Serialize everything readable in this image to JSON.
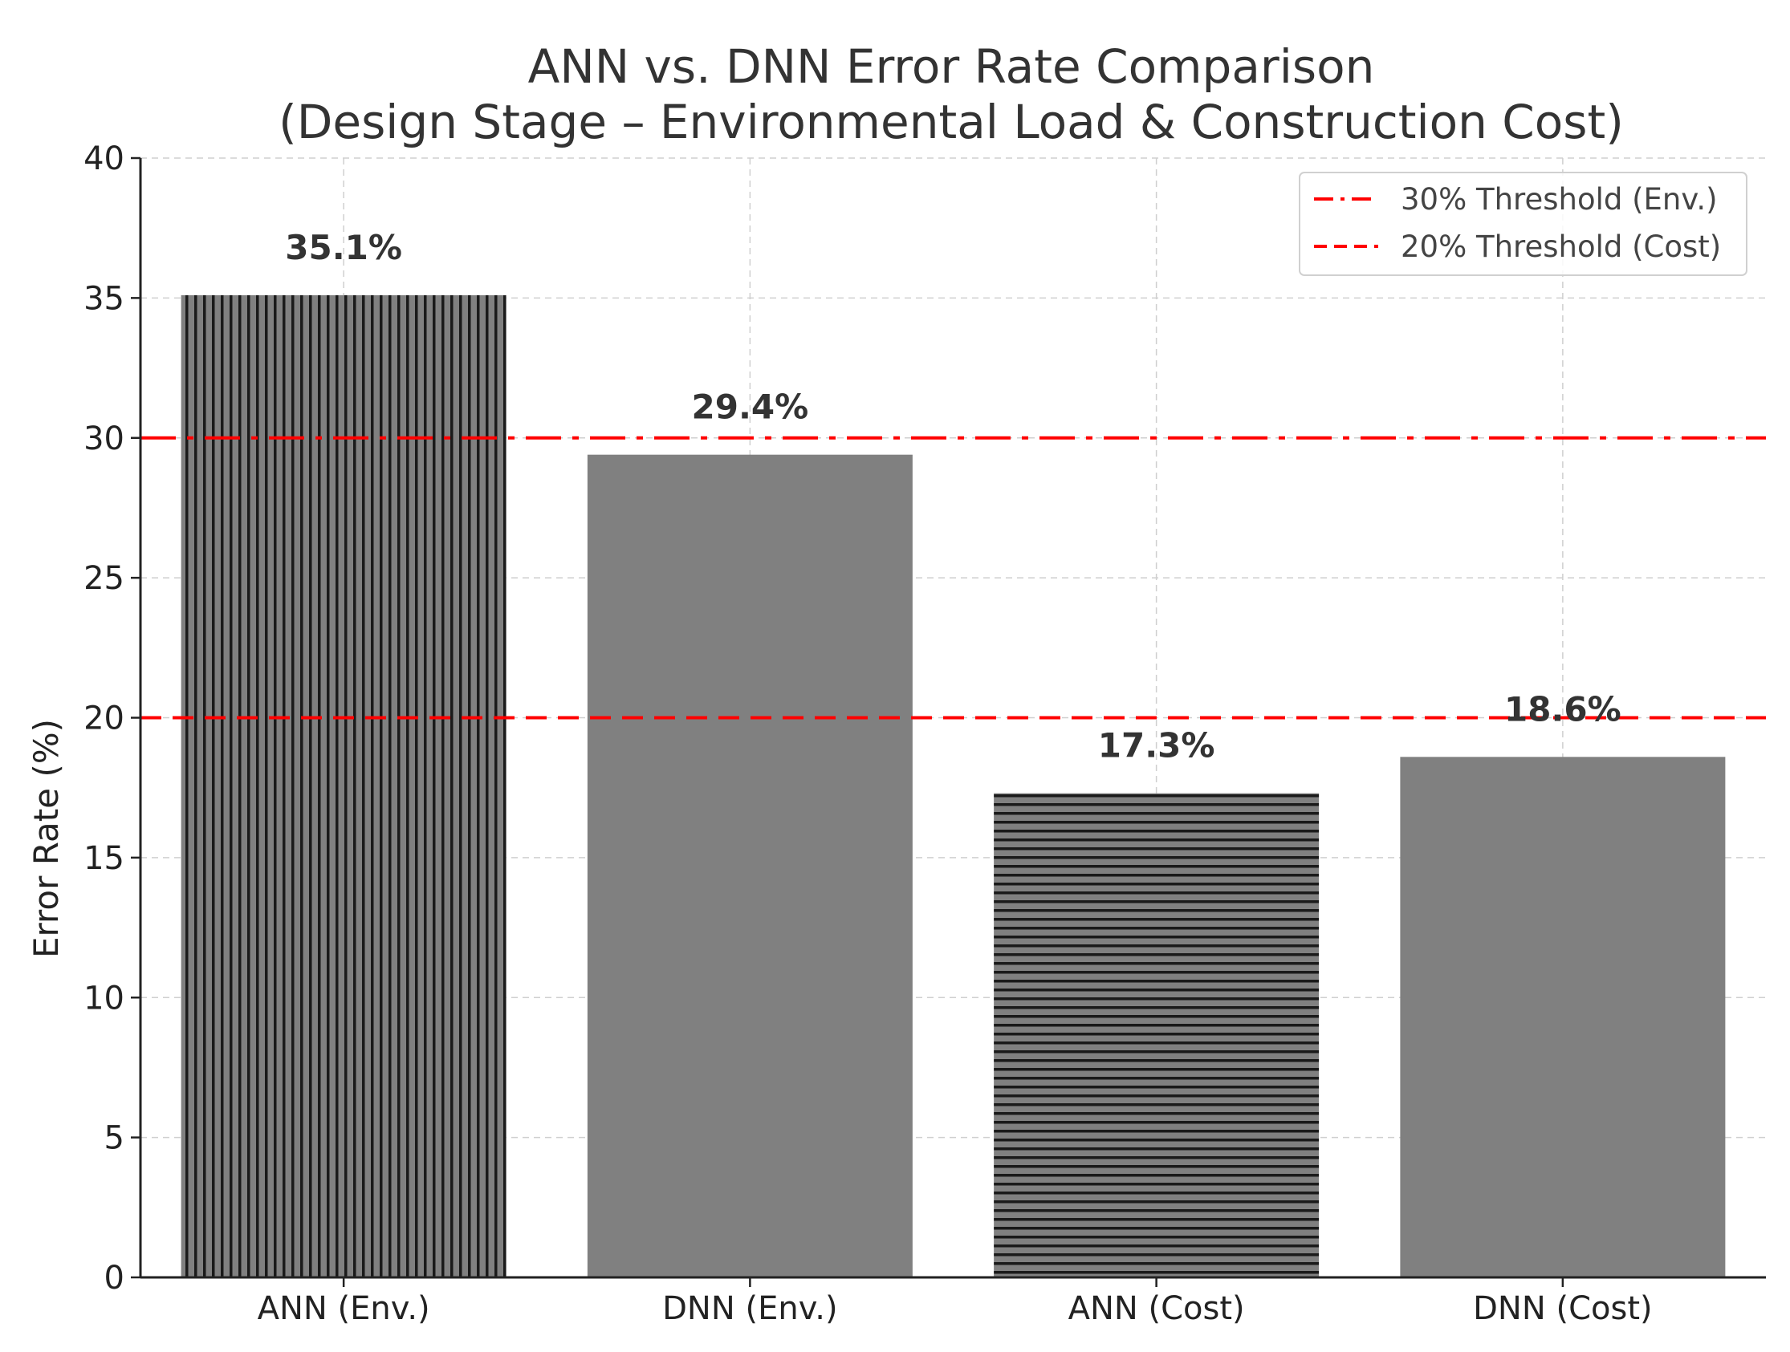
{
  "chart_data": {
    "type": "bar",
    "title_line1": "ANN vs. DNN Error Rate Comparison",
    "title_line2": "(Design Stage – Environmental Load & Construction Cost)",
    "xlabel": "",
    "ylabel": "Error Rate (%)",
    "ylim": [
      0,
      40
    ],
    "yticks": [
      0,
      5,
      10,
      15,
      20,
      25,
      30,
      35,
      40
    ],
    "grid": true,
    "categories": [
      "ANN (Env.)",
      "DNN (Env.)",
      "ANN (Cost)",
      "DNN (Cost)"
    ],
    "values": [
      35.1,
      29.4,
      17.3,
      18.6
    ],
    "value_labels": [
      "35.1%",
      "29.4%",
      "17.3%",
      "18.6%"
    ],
    "bar_color": "#808080",
    "hatch": [
      "vertical",
      "none",
      "horizontal",
      "none"
    ],
    "thresholds": [
      {
        "name": "30% Threshold (Env.)",
        "value": 30,
        "style": "dashdot",
        "color": "#ff0000"
      },
      {
        "name": "20% Threshold (Cost)",
        "value": 20,
        "style": "dashed",
        "color": "#ff0000"
      }
    ],
    "legend_position": "top-right"
  }
}
